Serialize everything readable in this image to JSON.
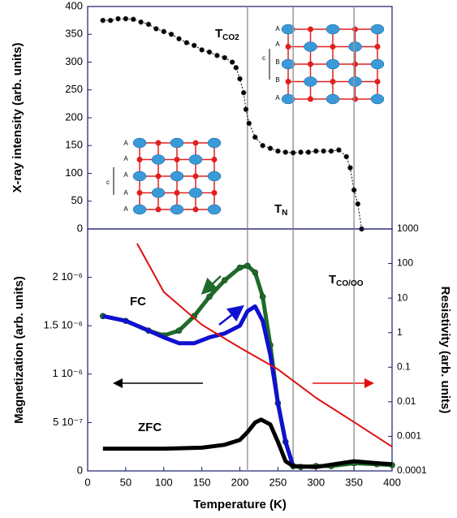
{
  "chart_data": [
    {
      "type": "line",
      "ylabel": "X-ray intensity (arb. units)",
      "xlim": [
        0,
        400
      ],
      "ylim": [
        0,
        400
      ],
      "yticks": [
        0,
        50,
        100,
        150,
        200,
        250,
        300,
        350,
        400
      ],
      "reference_lines_x": [
        210,
        270,
        350
      ],
      "annotations": [
        {
          "text": "T",
          "sub": "CO2"
        },
        {
          "text": "T",
          "sub": "N"
        }
      ],
      "inset_labels": [
        [
          "A",
          "A",
          "B",
          "B",
          "A",
          "c"
        ],
        [
          "A",
          "A",
          "A",
          "A",
          "A",
          "c"
        ]
      ],
      "series": [
        {
          "color": "#000000",
          "markers": true,
          "x": [
            20,
            30,
            40,
            50,
            60,
            70,
            80,
            90,
            100,
            110,
            120,
            130,
            140,
            150,
            160,
            170,
            180,
            190,
            195,
            200,
            205,
            208,
            212,
            220,
            230,
            240,
            250,
            260,
            270,
            280,
            290,
            300,
            310,
            320,
            330,
            340,
            345,
            350,
            355,
            360
          ],
          "values": [
            375,
            375,
            378,
            378,
            377,
            372,
            368,
            360,
            355,
            350,
            342,
            335,
            330,
            322,
            318,
            312,
            308,
            300,
            290,
            270,
            245,
            215,
            190,
            165,
            150,
            145,
            140,
            138,
            137,
            138,
            138,
            140,
            140,
            140,
            142,
            130,
            110,
            70,
            45,
            0
          ]
        }
      ]
    },
    {
      "type": "line",
      "xlabel": "Temperature (K)",
      "ylabel": "Magnetization (arb. units)",
      "y2label": "Resistivity (arb. units)",
      "xlim": [
        0,
        400
      ],
      "xticks": [
        0,
        50,
        100,
        150,
        200,
        250,
        300,
        350,
        400
      ],
      "ylim": [
        0,
        2.5e-06
      ],
      "yticks": [
        0,
        {
          "value": 5e-07,
          "label": "5 10⁻⁷"
        },
        {
          "value": 1e-06,
          "label": "1 10⁻⁶"
        },
        {
          "value": 1.5e-06,
          "label": "1.5 10⁻⁶"
        },
        {
          "value": 2e-06,
          "label": "2 10⁻⁶"
        }
      ],
      "y2lim": [
        0.0001,
        1000
      ],
      "y2scale": "log",
      "y2ticks": [
        0.0001,
        0.001,
        0.01,
        0.1,
        1,
        10,
        100,
        1000
      ],
      "reference_lines_x": [
        210,
        270,
        350
      ],
      "annotations": [
        {
          "text": "T",
          "sub": "CO/OO"
        },
        {
          "text": "FC"
        },
        {
          "text": "ZFC"
        }
      ],
      "series": [
        {
          "color": "#1f6b2a",
          "markers": true,
          "x": [
            20,
            50,
            80,
            100,
            120,
            140,
            160,
            180,
            200,
            210,
            220,
            230,
            240,
            250,
            260,
            270,
            280,
            300,
            320,
            350,
            380,
            400
          ],
          "values": [
            1.6e-06,
            1.55e-06,
            1.45e-06,
            1.4e-06,
            1.45e-06,
            1.6e-06,
            1.8e-06,
            1.97e-06,
            2.1e-06,
            2.12e-06,
            2.05e-06,
            1.8e-06,
            1.3e-06,
            7e-07,
            3e-07,
            5e-08,
            4e-08,
            5e-08,
            5e-08,
            8e-08,
            7e-08,
            6e-08
          ]
        },
        {
          "color": "#1010d0",
          "x": [
            20,
            50,
            80,
            100,
            120,
            140,
            160,
            180,
            200,
            210,
            220,
            230,
            240,
            250,
            260,
            270
          ],
          "values": [
            1.6e-06,
            1.55e-06,
            1.45e-06,
            1.38e-06,
            1.32e-06,
            1.32e-06,
            1.38e-06,
            1.42e-06,
            1.5e-06,
            1.65e-06,
            1.7e-06,
            1.55e-06,
            1.2e-06,
            7e-07,
            3e-07,
            5e-08
          ]
        },
        {
          "color": "#000000",
          "x": [
            20,
            100,
            150,
            180,
            200,
            210,
            220,
            228,
            240,
            250,
            260,
            270,
            300,
            350,
            380,
            400
          ],
          "values": [
            2.3e-07,
            2.3e-07,
            2.4e-07,
            2.7e-07,
            3.2e-07,
            4e-07,
            5e-07,
            5.3e-07,
            4.8e-07,
            3e-07,
            1e-07,
            5e-08,
            4e-08,
            1e-07,
            8e-08,
            7e-08
          ]
        },
        {
          "color": "#e01010",
          "axis": "y2",
          "x": [
            65,
            100,
            150,
            200,
            250,
            300,
            350,
            400
          ],
          "values": [
            380,
            15,
            1.7,
            0.37,
            0.087,
            0.013,
            0.0026,
            0.0005
          ]
        }
      ]
    }
  ]
}
